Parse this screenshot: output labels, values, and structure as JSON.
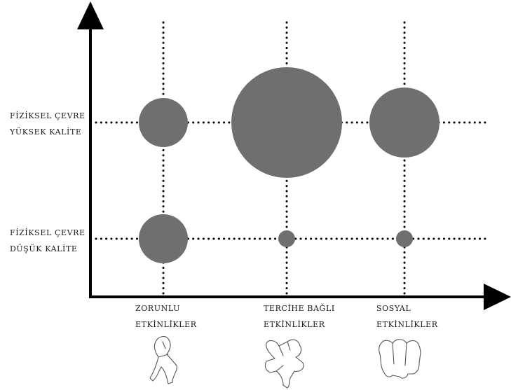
{
  "y_labels": [
    [
      "FİZİKSEL ÇEVRE",
      "YÜKSEK KALİTE"
    ],
    [
      "FİZİKSEL ÇEVRE",
      "DÜŞÜK KALİTE"
    ]
  ],
  "x_labels": [
    [
      "ZORUNLU",
      "ETKİNLİKLER"
    ],
    [
      "TERCİHE BAĞLI",
      "ETKİNLİKLER"
    ],
    [
      "SOSYAL",
      "ETKİNLİKLER"
    ]
  ],
  "bubble_levels": {
    "yuksek": [
      3,
      5,
      4
    ],
    "dusuk": [
      3,
      1,
      1
    ]
  },
  "icons": [
    "walking-person-icon",
    "sitting-person-icon",
    "standing-group-icon"
  ],
  "colors": {
    "bubble": "#6f6f6f",
    "axis": "#000000",
    "figure_fill_1": "#d2d2cf",
    "figure_fill_2": "#dcd9d2",
    "figure_fill_3": "#c9c0ac"
  }
}
